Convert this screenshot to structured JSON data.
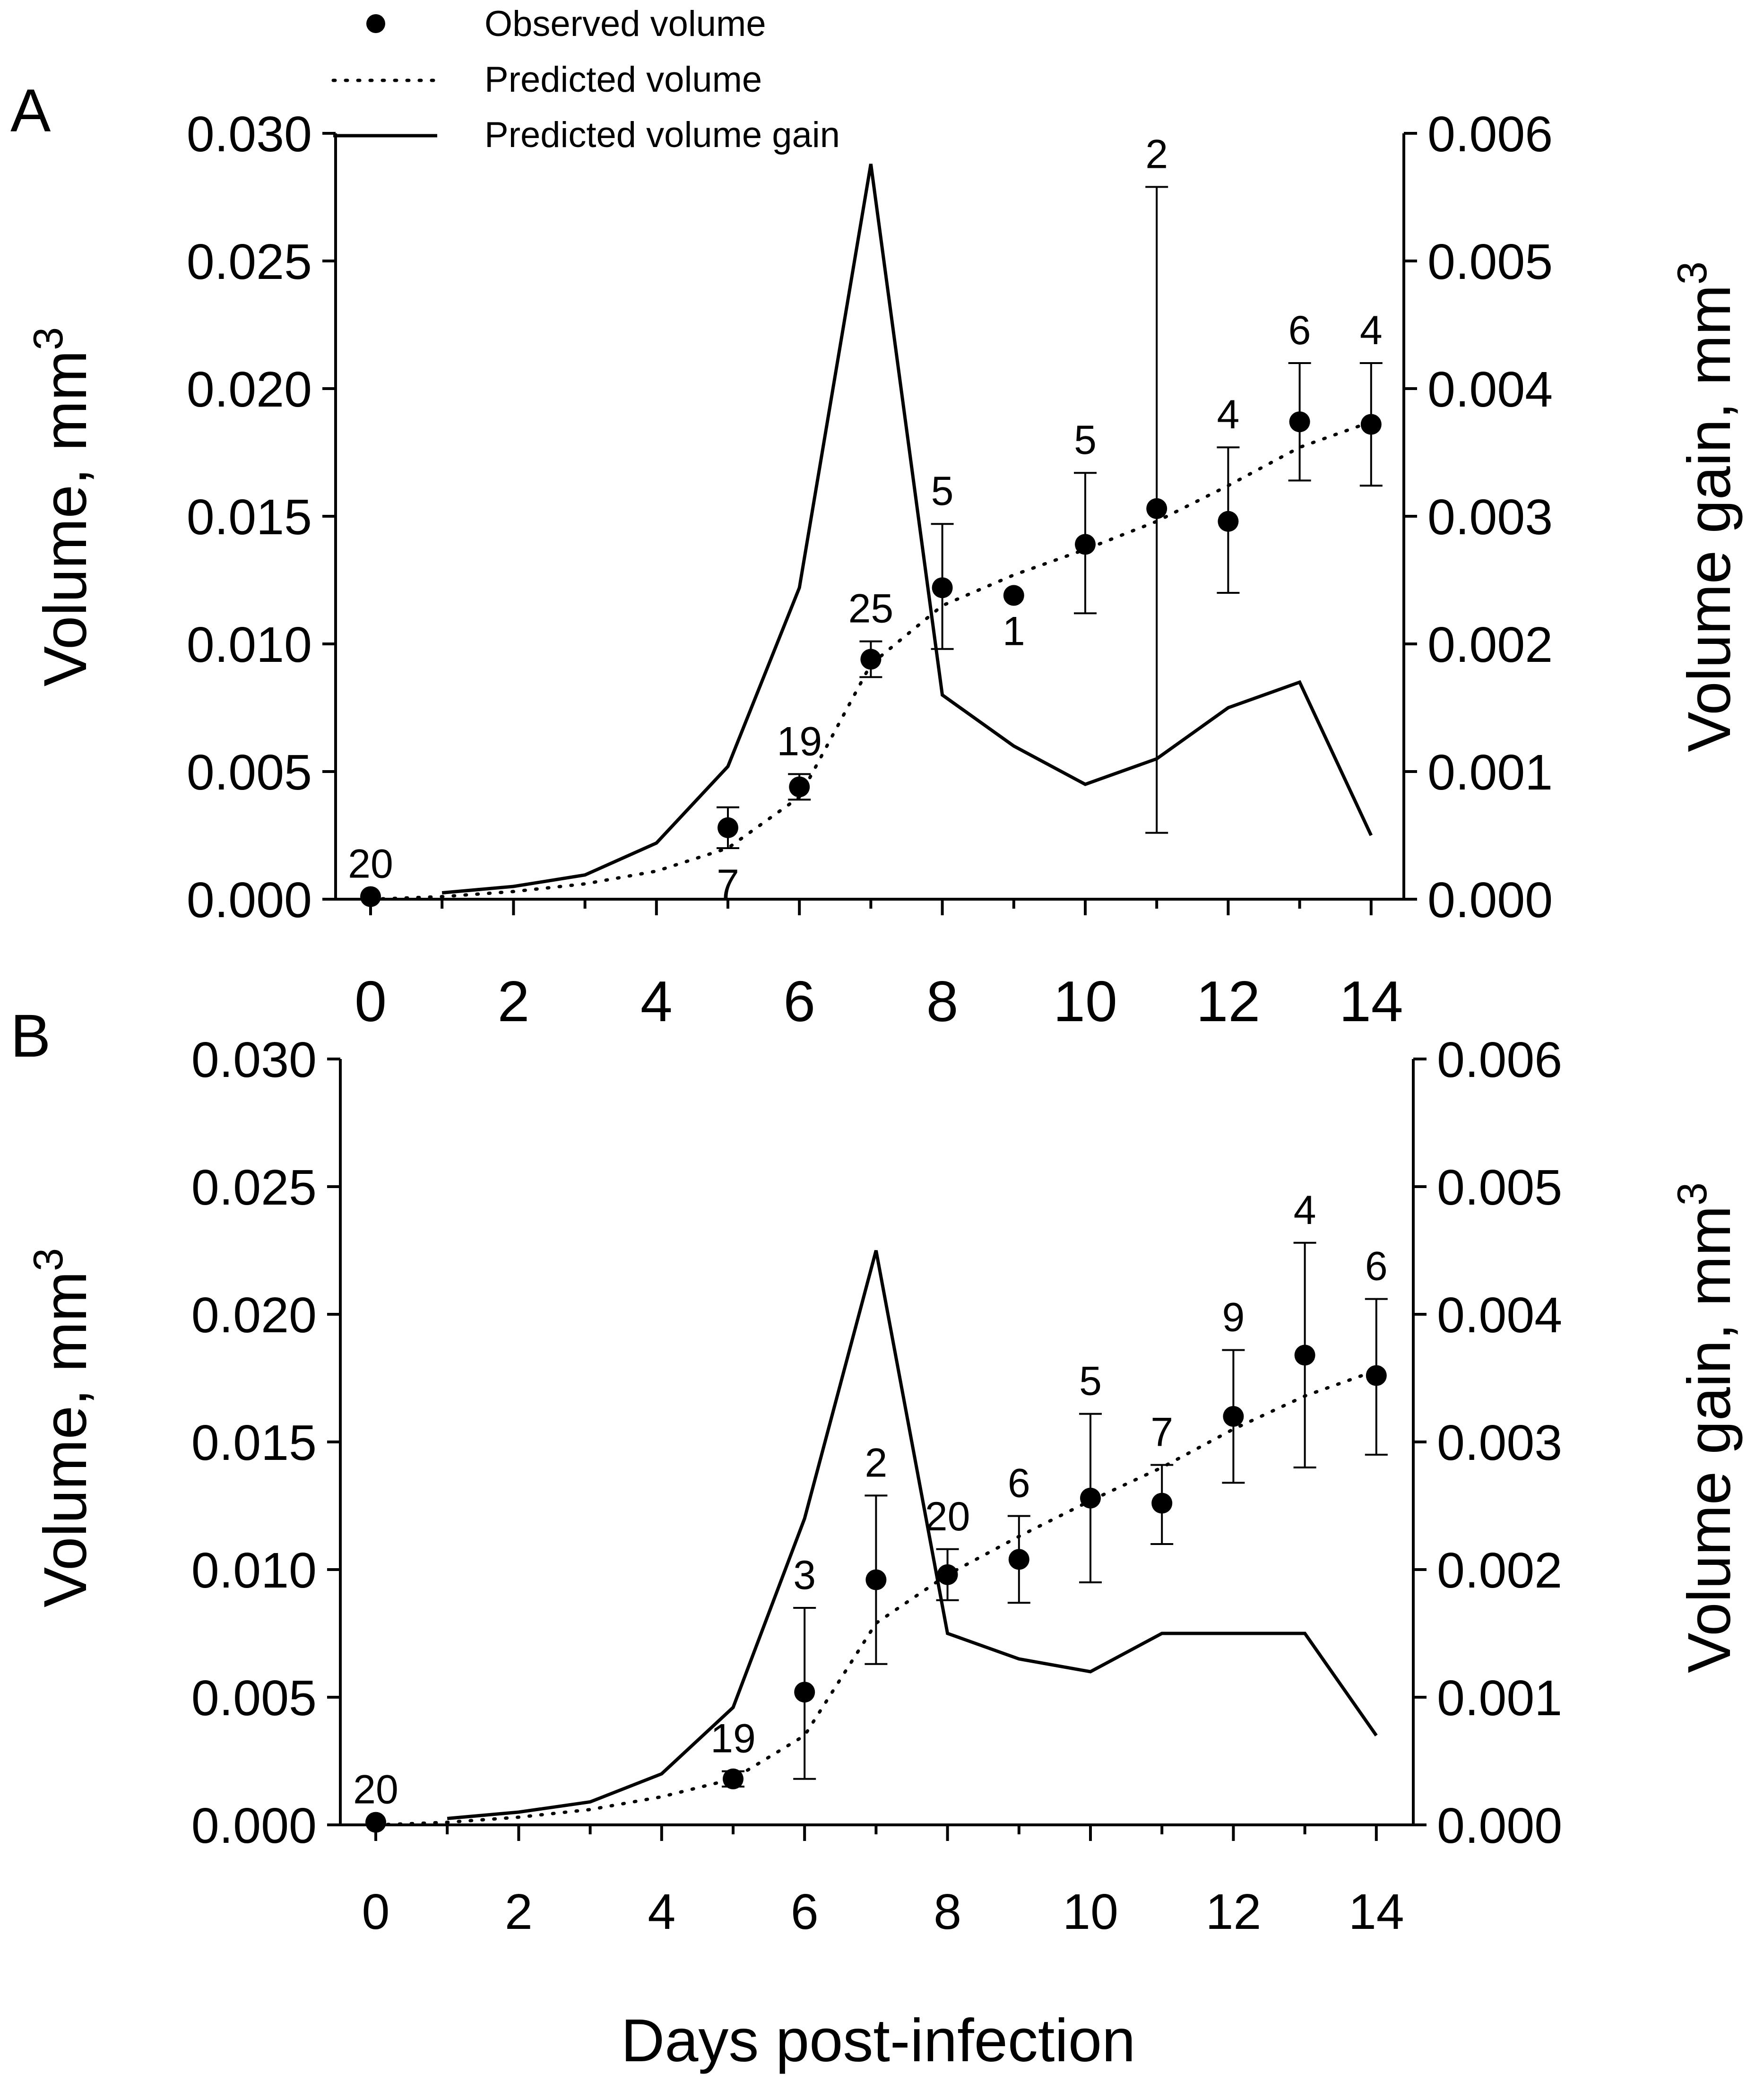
{
  "chart_data": {
    "type": "line",
    "xlabel": "Days post-infection",
    "legend": {
      "placement": "top",
      "entries": [
        {
          "label": "Observed volume",
          "style": "marker"
        },
        {
          "label": "Predicted volume",
          "style": "dotted"
        },
        {
          "label": "Predicted volume gain",
          "style": "solid"
        }
      ]
    },
    "panels": [
      {
        "panel_label": "A",
        "xlim": [
          0,
          14
        ],
        "xticks": [
          "0",
          "2",
          "4",
          "6",
          "8",
          "10",
          "12",
          "14"
        ],
        "ylabel_left": "Volume, mm",
        "ylabel_right": "Volume gain, mm",
        "ylabel_exponent": "3",
        "ylim_left": [
          0,
          0.03
        ],
        "ylim_right": [
          0,
          0.006
        ],
        "yticks_left": [
          "0.000",
          "0.005",
          "0.010",
          "0.015",
          "0.020",
          "0.025",
          "0.030"
        ],
        "yticks_right": [
          "0.000",
          "0.001",
          "0.002",
          "0.003",
          "0.004",
          "0.005",
          "0.006"
        ],
        "observed": [
          {
            "x": 0,
            "y": 0.0001,
            "err_lo": 0.0001,
            "err_hi": 0.0001,
            "n": "20",
            "n_pos": "above"
          },
          {
            "x": 5,
            "y": 0.0028,
            "err_lo": 0.002,
            "err_hi": 0.0036,
            "n": "7",
            "n_pos": "below"
          },
          {
            "x": 6,
            "y": 0.0044,
            "err_lo": 0.0039,
            "err_hi": 0.0049,
            "n": "19",
            "n_pos": "above"
          },
          {
            "x": 7,
            "y": 0.0094,
            "err_lo": 0.0087,
            "err_hi": 0.0101,
            "n": "25",
            "n_pos": "above"
          },
          {
            "x": 8,
            "y": 0.0122,
            "err_lo": 0.0098,
            "err_hi": 0.0147,
            "n": "5",
            "n_pos": "above"
          },
          {
            "x": 9,
            "y": 0.0119,
            "err_lo": 0.0119,
            "err_hi": 0.0119,
            "n": "1",
            "n_pos": "below"
          },
          {
            "x": 10,
            "y": 0.0139,
            "err_lo": 0.0112,
            "err_hi": 0.0167,
            "n": "5",
            "n_pos": "above"
          },
          {
            "x": 11,
            "y": 0.0153,
            "err_lo": 0.0026,
            "err_hi": 0.0279,
            "n": "2",
            "n_pos": "above"
          },
          {
            "x": 12,
            "y": 0.0148,
            "err_lo": 0.012,
            "err_hi": 0.0177,
            "n": "4",
            "n_pos": "above"
          },
          {
            "x": 13,
            "y": 0.0187,
            "err_lo": 0.0164,
            "err_hi": 0.021,
            "n": "6",
            "n_pos": "above"
          },
          {
            "x": 14,
            "y": 0.0186,
            "err_lo": 0.0162,
            "err_hi": 0.021,
            "n": "4",
            "n_pos": "above"
          }
        ],
        "predicted_volume": {
          "x": [
            0,
            1,
            2,
            3,
            4,
            5,
            6,
            7,
            8,
            9,
            10,
            11,
            12,
            13,
            14
          ],
          "y": [
            0.0,
            0.0001,
            0.0003,
            0.0006,
            0.0011,
            0.002,
            0.004,
            0.0092,
            0.0115,
            0.0127,
            0.0137,
            0.0148,
            0.0162,
            0.0177,
            0.0187
          ]
        },
        "predicted_gain": {
          "x": [
            1,
            2,
            3,
            4,
            5,
            6,
            7,
            8,
            9,
            10,
            11,
            12,
            13,
            14
          ],
          "y": [
            5e-05,
            0.0001,
            0.00019,
            0.00044,
            0.00104,
            0.00244,
            0.00576,
            0.0016,
            0.0012,
            0.0009,
            0.0011,
            0.0015,
            0.0017,
            0.0005
          ]
        }
      },
      {
        "panel_label": "B",
        "xlim": [
          0,
          14
        ],
        "xticks": [
          "0",
          "2",
          "4",
          "6",
          "8",
          "10",
          "12",
          "14"
        ],
        "ylabel_left": "Volume, mm",
        "ylabel_right": "Volume gain, mm",
        "ylabel_exponent": "3",
        "ylim_left": [
          0,
          0.03
        ],
        "ylim_right": [
          0,
          0.006
        ],
        "yticks_left": [
          "0.000",
          "0.005",
          "0.010",
          "0.015",
          "0.020",
          "0.025",
          "0.030"
        ],
        "yticks_right": [
          "0.000",
          "0.001",
          "0.002",
          "0.003",
          "0.004",
          "0.005",
          "0.006"
        ],
        "observed": [
          {
            "x": 0,
            "y": 0.0001,
            "err_lo": 0.0001,
            "err_hi": 0.0001,
            "n": "20",
            "n_pos": "above"
          },
          {
            "x": 5,
            "y": 0.0018,
            "err_lo": 0.0015,
            "err_hi": 0.0021,
            "n": "19",
            "n_pos": "above"
          },
          {
            "x": 6,
            "y": 0.0052,
            "err_lo": 0.0018,
            "err_hi": 0.0085,
            "n": "3",
            "n_pos": "above"
          },
          {
            "x": 7,
            "y": 0.0096,
            "err_lo": 0.0063,
            "err_hi": 0.0129,
            "n": "2",
            "n_pos": "above"
          },
          {
            "x": 8,
            "y": 0.0098,
            "err_lo": 0.0088,
            "err_hi": 0.0108,
            "n": "20",
            "n_pos": "above"
          },
          {
            "x": 9,
            "y": 0.0104,
            "err_lo": 0.0087,
            "err_hi": 0.0121,
            "n": "6",
            "n_pos": "above"
          },
          {
            "x": 10,
            "y": 0.0128,
            "err_lo": 0.0095,
            "err_hi": 0.0161,
            "n": "5",
            "n_pos": "above"
          },
          {
            "x": 11,
            "y": 0.0126,
            "err_lo": 0.011,
            "err_hi": 0.0141,
            "n": "7",
            "n_pos": "above"
          },
          {
            "x": 12,
            "y": 0.016,
            "err_lo": 0.0134,
            "err_hi": 0.0186,
            "n": "9",
            "n_pos": "above"
          },
          {
            "x": 13,
            "y": 0.0184,
            "err_lo": 0.014,
            "err_hi": 0.0228,
            "n": "4",
            "n_pos": "above"
          },
          {
            "x": 14,
            "y": 0.0176,
            "err_lo": 0.0145,
            "err_hi": 0.0206,
            "n": "6",
            "n_pos": "above"
          }
        ],
        "predicted_volume": {
          "x": [
            0,
            1,
            2,
            3,
            4,
            5,
            6,
            7,
            8,
            9,
            10,
            11,
            12,
            13,
            14
          ],
          "y": [
            0.0,
            0.0001,
            0.0003,
            0.0006,
            0.0011,
            0.0018,
            0.0035,
            0.0079,
            0.0098,
            0.0113,
            0.0127,
            0.014,
            0.0155,
            0.0168,
            0.0178
          ]
        },
        "predicted_gain": {
          "x": [
            1,
            2,
            3,
            4,
            5,
            6,
            7,
            8,
            9,
            10,
            11,
            12,
            13,
            14
          ],
          "y": [
            5e-05,
            0.0001,
            0.00018,
            0.0004,
            0.00092,
            0.0024,
            0.0045,
            0.0015,
            0.0013,
            0.0012,
            0.0015,
            0.0015,
            0.0015,
            0.0007
          ]
        }
      }
    ]
  }
}
